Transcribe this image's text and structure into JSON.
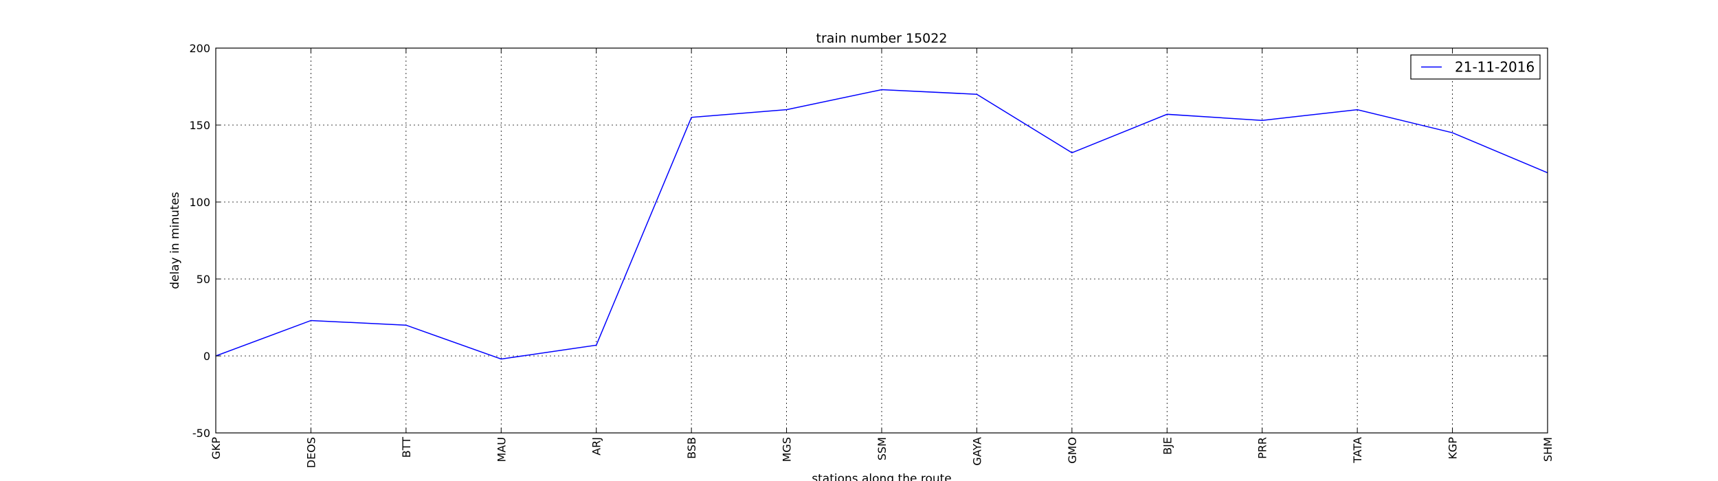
{
  "chart_data": {
    "type": "line",
    "title": "train number 15022",
    "xlabel": "stations along the route",
    "ylabel": "delay in minutes",
    "categories": [
      "GKP",
      "DEOS",
      "BTT",
      "MAU",
      "ARJ",
      "BSB",
      "MGS",
      "SSM",
      "GAYA",
      "GMO",
      "BJE",
      "PRR",
      "TATA",
      "KGP",
      "SHM"
    ],
    "series": [
      {
        "name": "21-11-2016",
        "color": "#0000ff",
        "values": [
          0,
          23,
          20,
          -2,
          7,
          155,
          160,
          173,
          170,
          132,
          157,
          153,
          160,
          145,
          119
        ]
      }
    ],
    "ylim": [
      -50,
      200
    ],
    "yticks": [
      -50,
      0,
      50,
      100,
      150,
      200
    ],
    "grid": true,
    "legend_position": "top-right"
  }
}
